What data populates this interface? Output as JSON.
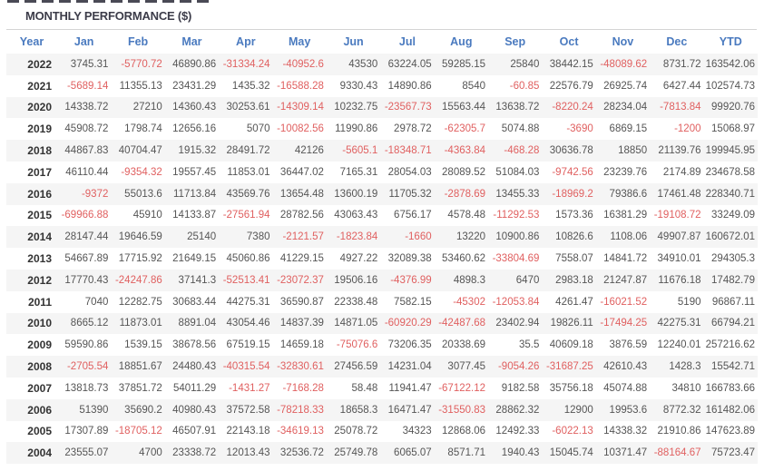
{
  "title": "MONTHLY PERFORMANCE ($)",
  "colors": {
    "header_blue": "#4a7abf",
    "negative_red": "#e06060",
    "positive_gray": "#555555",
    "year_dark": "#333333",
    "stripe": "#f5f5f5",
    "title_dark": "#3c3c49"
  },
  "table": {
    "columns": [
      "Year",
      "Jan",
      "Feb",
      "Mar",
      "Apr",
      "May",
      "Jun",
      "Jul",
      "Aug",
      "Sep",
      "Oct",
      "Nov",
      "Dec",
      "YTD"
    ],
    "rows": [
      {
        "year": "2022",
        "values": [
          "3745.31",
          "-5770.72",
          "46890.86",
          "-31334.24",
          "-40952.6",
          "43530",
          "63224.05",
          "59285.15",
          "25840",
          "38442.15",
          "-48089.62",
          "8731.72",
          "163542.06"
        ]
      },
      {
        "year": "2021",
        "values": [
          "-5689.14",
          "11355.13",
          "23431.29",
          "1435.32",
          "-16588.28",
          "9330.43",
          "14890.86",
          "8540",
          "-60.85",
          "22576.79",
          "26925.74",
          "6427.44",
          "102574.73"
        ]
      },
      {
        "year": "2020",
        "values": [
          "14338.72",
          "27210",
          "14360.43",
          "30253.61",
          "-14309.14",
          "10232.75",
          "-23567.73",
          "15563.44",
          "13638.72",
          "-8220.24",
          "28234.04",
          "-7813.84",
          "99920.76"
        ]
      },
      {
        "year": "2019",
        "values": [
          "45908.72",
          "1798.74",
          "12656.16",
          "5070",
          "-10082.56",
          "11990.86",
          "2978.72",
          "-62305.7",
          "5074.88",
          "-3690",
          "6869.15",
          "-1200",
          "15068.97"
        ]
      },
      {
        "year": "2018",
        "values": [
          "44867.83",
          "40704.47",
          "1915.32",
          "28491.72",
          "42126",
          "-5605.1",
          "-18348.71",
          "-4363.84",
          "-468.28",
          "30636.78",
          "18850",
          "21139.76",
          "199945.95"
        ]
      },
      {
        "year": "2017",
        "values": [
          "46110.44",
          "-9354.32",
          "19557.45",
          "11853.01",
          "36447.02",
          "7165.31",
          "28054.03",
          "28089.52",
          "51084.03",
          "-9742.56",
          "23239.76",
          "2174.89",
          "234678.58"
        ]
      },
      {
        "year": "2016",
        "values": [
          "-9372",
          "55013.6",
          "11713.84",
          "43569.76",
          "13654.48",
          "13600.19",
          "11705.32",
          "-2878.69",
          "13455.33",
          "-18969.2",
          "79386.6",
          "17461.48",
          "228340.71"
        ]
      },
      {
        "year": "2015",
        "values": [
          "-69966.88",
          "45910",
          "14133.87",
          "-27561.94",
          "28782.56",
          "43063.43",
          "6756.17",
          "4578.48",
          "-11292.53",
          "1573.36",
          "16381.29",
          "-19108.72",
          "33249.09"
        ]
      },
      {
        "year": "2014",
        "values": [
          "28147.44",
          "19646.59",
          "25140",
          "7380",
          "-2121.57",
          "-1823.84",
          "-1660",
          "13220",
          "10900.86",
          "10826.6",
          "1108.06",
          "49907.87",
          "160672.01"
        ]
      },
      {
        "year": "2013",
        "values": [
          "54667.89",
          "17715.92",
          "21649.15",
          "45060.86",
          "41229.15",
          "4927.22",
          "32089.38",
          "53460.62",
          "-33804.69",
          "7558.07",
          "14841.72",
          "34910.01",
          "294305.3"
        ]
      },
      {
        "year": "2012",
        "values": [
          "17770.43",
          "-24247.86",
          "37141.3",
          "-52513.41",
          "-23072.37",
          "19506.16",
          "-4376.99",
          "4898.3",
          "6470",
          "2983.18",
          "21247.87",
          "11676.18",
          "17482.79"
        ]
      },
      {
        "year": "2011",
        "values": [
          "7040",
          "12282.75",
          "30683.44",
          "44275.31",
          "36590.87",
          "22338.48",
          "7582.15",
          "-45302",
          "-12053.84",
          "4261.47",
          "-16021.52",
          "5190",
          "96867.11"
        ]
      },
      {
        "year": "2010",
        "values": [
          "8665.12",
          "11873.01",
          "8891.04",
          "43054.46",
          "14837.39",
          "14871.05",
          "-60920.29",
          "-42487.68",
          "23402.94",
          "19826.11",
          "-17494.25",
          "42275.31",
          "66794.21"
        ]
      },
      {
        "year": "2009",
        "values": [
          "59590.86",
          "1539.15",
          "38678.56",
          "67519.15",
          "14659.18",
          "-75076.6",
          "73206.35",
          "20338.69",
          "35.5",
          "40609.18",
          "3876.59",
          "12240.01",
          "257216.62"
        ]
      },
      {
        "year": "2008",
        "values": [
          "-2705.54",
          "18851.67",
          "24480.43",
          "-40315.54",
          "-32830.61",
          "27456.59",
          "14231.04",
          "3077.45",
          "-9054.26",
          "-31687.25",
          "42610.43",
          "1428.3",
          "15542.71"
        ]
      },
      {
        "year": "2007",
        "values": [
          "13818.73",
          "37851.72",
          "54011.29",
          "-1431.27",
          "-7168.28",
          "58.48",
          "11941.47",
          "-67122.12",
          "9182.58",
          "35756.18",
          "45074.88",
          "34810",
          "166783.66"
        ]
      },
      {
        "year": "2006",
        "values": [
          "51390",
          "35690.2",
          "40980.43",
          "37572.58",
          "-78218.33",
          "18658.3",
          "16471.47",
          "-31550.83",
          "28862.32",
          "12900",
          "19953.6",
          "8772.32",
          "161482.06"
        ]
      },
      {
        "year": "2005",
        "values": [
          "17307.89",
          "-18705.12",
          "46507.91",
          "22143.18",
          "-34619.13",
          "25078.72",
          "34323",
          "12868.06",
          "12492.33",
          "-6022.13",
          "14338.32",
          "21910.86",
          "147623.89"
        ]
      },
      {
        "year": "2004",
        "values": [
          "23555.07",
          "4700",
          "23338.72",
          "12013.43",
          "32536.72",
          "25749.78",
          "6065.07",
          "8571.71",
          "1940.43",
          "15045.74",
          "10371.47",
          "-88164.67",
          "75723.47"
        ]
      }
    ]
  }
}
